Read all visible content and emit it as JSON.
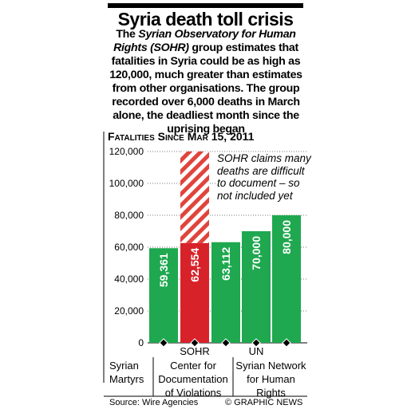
{
  "chart_data": {
    "type": "bar",
    "title": "Syria death toll crisis",
    "subtitle": [
      "The ",
      "Syrian Observatory for Human Rights (SOHR)",
      " group estimates that fatalities in Syria could be as high as 120,000, much greater than estimates from other organisations. The group recorded over 6,000 deaths in March alone, the deadliest month since the uprising began"
    ],
    "chart_title": "Fatalities Since Mar 15, 2011",
    "categories": [
      "Syrian Martyrs",
      "SOHR",
      "Center for Documentation of Violations",
      "UN",
      "Syrian Network for Human Rights"
    ],
    "values": [
      59361,
      62554,
      63112,
      70000,
      80000
    ],
    "value_labels": [
      "59,361",
      "62,554",
      "63,112",
      "70,000",
      "80,000"
    ],
    "colors": [
      "#1fa84f",
      "#d7222a",
      "#1fa84f",
      "#1fa84f",
      "#1fa84f"
    ],
    "estimate_high": {
      "category": "SOHR",
      "value": 120000
    },
    "annotation": "SOHR claims many deaths are difficult to document – so not included yet",
    "ylim": [
      0,
      120000
    ],
    "yticks": [
      0,
      {
        "value": 20000,
        "label": "20,000"
      },
      {
        "value": 40000,
        "label": "40,000"
      },
      {
        "value": 60000,
        "label": "60,000"
      },
      {
        "value": 80000,
        "label": "80,000"
      },
      {
        "value": 100000,
        "label": "100,000"
      },
      {
        "value": 120000,
        "label": "120,000"
      }
    ],
    "grid": true,
    "source": "Source: Wire Agencies",
    "credit": "© GRAPHIC NEWS"
  }
}
